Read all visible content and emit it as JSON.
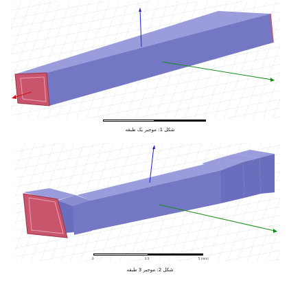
{
  "figure1": {
    "caption": "شکل 1: موجبر یک طبقه",
    "icons": [
      "y-axis-arrow-icon",
      "x-axis-arrow-icon",
      "z-axis-arrow-icon"
    ],
    "colors": {
      "body": "#7478c4",
      "face": "#c8556c",
      "grid": "#d0d0d0",
      "y_axis": "#1c1cd0",
      "x_axis": "#1a8a1a",
      "z_axis": "#d01010"
    }
  },
  "figure2": {
    "caption": "شکل 2: موجبر 3 طبقه",
    "scale_ticks": [
      "0",
      "2.5",
      "5 (mm)"
    ],
    "colors": {
      "body": "#7478c4",
      "face": "#c8556c",
      "grid": "#d0d0d0",
      "y_axis": "#1c1cd0",
      "x_axis": "#1a8a1a"
    }
  }
}
